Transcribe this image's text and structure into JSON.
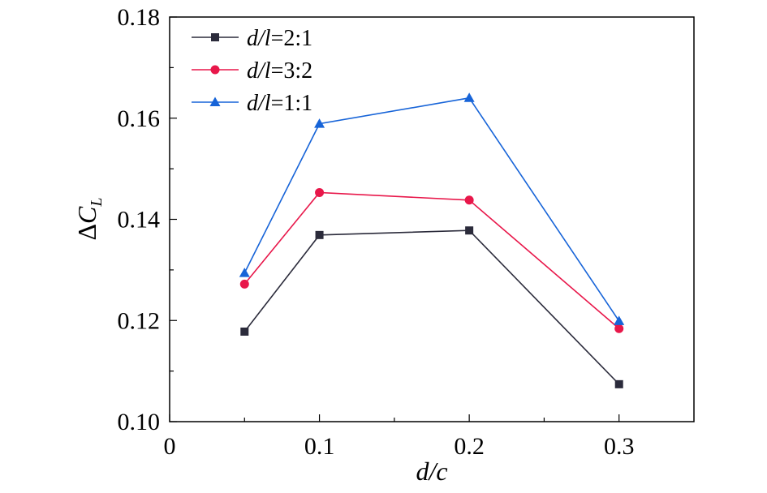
{
  "chart_data": {
    "type": "line",
    "title": "",
    "xlabel": "d/c",
    "ylabel": "ΔC_L",
    "xlim": [
      0,
      0.35
    ],
    "ylim": [
      0.1,
      0.18
    ],
    "xticks": [
      0,
      0.1,
      0.2,
      0.3
    ],
    "xtick_labels": [
      "0",
      "0.1",
      "0.2",
      "0.3"
    ],
    "yticks": [
      0.1,
      0.12,
      0.14,
      0.16,
      0.18
    ],
    "ytick_labels": [
      "0.10",
      "0.12",
      "0.14",
      "0.16",
      "0.18"
    ],
    "x": [
      0.05,
      0.1,
      0.2,
      0.3
    ],
    "legend_position": "top-left",
    "series": [
      {
        "name": "d/l=2:1",
        "name_var": "d/l",
        "name_ratio": "=2:1",
        "color": "#2b2b3b",
        "marker": "square",
        "values": [
          0.1178,
          0.1369,
          0.1378,
          0.1074
        ]
      },
      {
        "name": "d/l=3:2",
        "name_var": "d/l",
        "name_ratio": "=3:2",
        "color": "#e8174a",
        "marker": "circle",
        "values": [
          0.1272,
          0.1453,
          0.1438,
          0.1184
        ]
      },
      {
        "name": "d/l=1:1",
        "name_var": "d/l",
        "name_ratio": "=1:1",
        "color": "#1764d8",
        "marker": "triangle",
        "values": [
          0.1294,
          0.1589,
          0.164,
          0.1199
        ]
      }
    ]
  }
}
